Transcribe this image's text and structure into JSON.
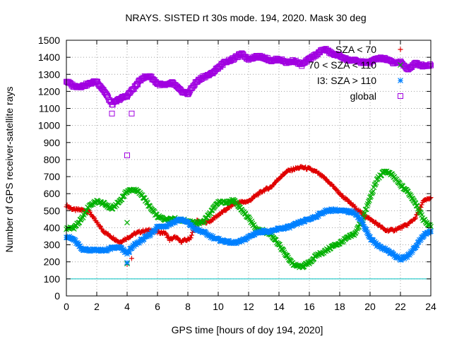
{
  "chart_data": {
    "type": "scatter",
    "title": "NRAYS. SISTED rt 30s mode. 194, 2020. Mask 30 deg",
    "xlabel": "GPS time [hours of doy 194, 2020]",
    "ylabel": "Number of GPS receiver-satellite rays",
    "xlim": [
      0,
      24
    ],
    "ylim": [
      0,
      1500
    ],
    "xticks": [
      "0",
      "2",
      "4",
      "6",
      "8",
      "10",
      "12",
      "14",
      "16",
      "18",
      "20",
      "22",
      "24"
    ],
    "yticks": [
      "0",
      "100",
      "200",
      "300",
      "400",
      "500",
      "600",
      "700",
      "800",
      "900",
      "1000",
      "1100",
      "1200",
      "1300",
      "1400",
      "1500"
    ],
    "grid": true,
    "reference_line": {
      "y": 100,
      "color": "#00c0c0"
    },
    "legend_position": "top-right",
    "series": [
      {
        "name": "SZA < 70",
        "marker": "+",
        "color": "#e00000",
        "points": [
          [
            0,
            530
          ],
          [
            0.5,
            505
          ],
          [
            1,
            505
          ],
          [
            1.5,
            495
          ],
          [
            2,
            430
          ],
          [
            2.5,
            375
          ],
          [
            3,
            345
          ],
          [
            3.5,
            315
          ],
          [
            4,
            340
          ],
          [
            4.5,
            365
          ],
          [
            5,
            380
          ],
          [
            5.5,
            385
          ],
          [
            6,
            375
          ],
          [
            6.5,
            370
          ],
          [
            6.8,
            330
          ],
          [
            7.2,
            345
          ],
          [
            7.5,
            320
          ],
          [
            8,
            330
          ],
          [
            8.2,
            345
          ],
          [
            8.6,
            440
          ],
          [
            9,
            430
          ],
          [
            9.5,
            440
          ],
          [
            10,
            475
          ],
          [
            10.5,
            505
          ],
          [
            11,
            540
          ],
          [
            11.5,
            550
          ],
          [
            12,
            555
          ],
          [
            12.5,
            590
          ],
          [
            13,
            620
          ],
          [
            13.5,
            640
          ],
          [
            14,
            690
          ],
          [
            14.5,
            730
          ],
          [
            15,
            745
          ],
          [
            15.5,
            755
          ],
          [
            16,
            745
          ],
          [
            16.5,
            725
          ],
          [
            17,
            690
          ],
          [
            17.5,
            650
          ],
          [
            18,
            600
          ],
          [
            18.5,
            560
          ],
          [
            19,
            520
          ],
          [
            19.5,
            480
          ],
          [
            20,
            450
          ],
          [
            20.5,
            420
          ],
          [
            21,
            385
          ],
          [
            21.5,
            385
          ],
          [
            22,
            400
          ],
          [
            22.5,
            420
          ],
          [
            23,
            460
          ],
          [
            23.5,
            555
          ],
          [
            24,
            575
          ]
        ],
        "outliers": [
          [
            4,
            185
          ],
          [
            4.3,
            220
          ]
        ]
      },
      {
        "name": "70 < SZA < 110",
        "marker": "x",
        "color": "#00b000",
        "points": [
          [
            0,
            395
          ],
          [
            0.5,
            400
          ],
          [
            1,
            450
          ],
          [
            1.5,
            530
          ],
          [
            2,
            555
          ],
          [
            2.5,
            540
          ],
          [
            3,
            510
          ],
          [
            3.5,
            555
          ],
          [
            4,
            615
          ],
          [
            4.5,
            625
          ],
          [
            5,
            590
          ],
          [
            5.5,
            520
          ],
          [
            6,
            465
          ],
          [
            6.5,
            450
          ],
          [
            7,
            455
          ],
          [
            7.5,
            445
          ],
          [
            8,
            440
          ],
          [
            8.5,
            425
          ],
          [
            9,
            435
          ],
          [
            9.5,
            490
          ],
          [
            10,
            550
          ],
          [
            10.5,
            550
          ],
          [
            11,
            560
          ],
          [
            11.5,
            510
          ],
          [
            12,
            455
          ],
          [
            12.5,
            395
          ],
          [
            13,
            380
          ],
          [
            13.5,
            360
          ],
          [
            14,
            300
          ],
          [
            14.5,
            235
          ],
          [
            15,
            180
          ],
          [
            15.5,
            170
          ],
          [
            16,
            195
          ],
          [
            16.5,
            240
          ],
          [
            17,
            260
          ],
          [
            17.5,
            290
          ],
          [
            18,
            310
          ],
          [
            18.5,
            340
          ],
          [
            19,
            365
          ],
          [
            19.5,
            450
          ],
          [
            20,
            575
          ],
          [
            20.5,
            690
          ],
          [
            21,
            735
          ],
          [
            21.5,
            705
          ],
          [
            22,
            650
          ],
          [
            22.5,
            610
          ],
          [
            23,
            545
          ],
          [
            23.5,
            450
          ],
          [
            24,
            405
          ]
        ],
        "outliers": [
          [
            4,
            190
          ],
          [
            4,
            430
          ]
        ]
      },
      {
        "name": "I3: SZA > 110",
        "marker": "*",
        "color": "#0080ff",
        "points": [
          [
            0,
            350
          ],
          [
            0.5,
            330
          ],
          [
            1,
            275
          ],
          [
            1.5,
            270
          ],
          [
            2,
            270
          ],
          [
            2.5,
            265
          ],
          [
            3,
            280
          ],
          [
            3.5,
            285
          ],
          [
            4,
            250
          ],
          [
            4.5,
            300
          ],
          [
            5,
            330
          ],
          [
            5.5,
            360
          ],
          [
            6,
            405
          ],
          [
            6.5,
            410
          ],
          [
            7,
            430
          ],
          [
            7.5,
            450
          ],
          [
            8,
            430
          ],
          [
            8.5,
            390
          ],
          [
            9,
            375
          ],
          [
            9.5,
            350
          ],
          [
            10,
            330
          ],
          [
            10.5,
            320
          ],
          [
            11,
            310
          ],
          [
            11.5,
            320
          ],
          [
            12,
            345
          ],
          [
            12.5,
            370
          ],
          [
            13,
            380
          ],
          [
            13.5,
            375
          ],
          [
            14,
            395
          ],
          [
            14.5,
            400
          ],
          [
            15,
            415
          ],
          [
            15.5,
            435
          ],
          [
            16,
            450
          ],
          [
            16.5,
            470
          ],
          [
            17,
            495
          ],
          [
            17.5,
            505
          ],
          [
            18,
            500
          ],
          [
            18.5,
            495
          ],
          [
            19,
            490
          ],
          [
            19.5,
            430
          ],
          [
            20,
            340
          ],
          [
            20.5,
            295
          ],
          [
            21,
            275
          ],
          [
            21.5,
            245
          ],
          [
            22,
            215
          ],
          [
            22.5,
            235
          ],
          [
            23,
            290
          ],
          [
            23.5,
            355
          ],
          [
            24,
            380
          ]
        ],
        "outliers": [
          [
            4,
            195
          ]
        ]
      },
      {
        "name": "global",
        "marker": "square",
        "color": "#a000e0",
        "points": [
          [
            0,
            1260
          ],
          [
            0.5,
            1230
          ],
          [
            1,
            1230
          ],
          [
            1.5,
            1245
          ],
          [
            2,
            1260
          ],
          [
            2.5,
            1200
          ],
          [
            3,
            1125
          ],
          [
            3.5,
            1155
          ],
          [
            4,
            1175
          ],
          [
            4.5,
            1225
          ],
          [
            5,
            1280
          ],
          [
            5.5,
            1290
          ],
          [
            6,
            1245
          ],
          [
            6.5,
            1235
          ],
          [
            7,
            1250
          ],
          [
            7.5,
            1205
          ],
          [
            8,
            1185
          ],
          [
            8.5,
            1250
          ],
          [
            9,
            1285
          ],
          [
            9.5,
            1300
          ],
          [
            10,
            1340
          ],
          [
            10.5,
            1375
          ],
          [
            11,
            1390
          ],
          [
            11.5,
            1420
          ],
          [
            12,
            1390
          ],
          [
            12.5,
            1405
          ],
          [
            13,
            1400
          ],
          [
            13.5,
            1380
          ],
          [
            14,
            1390
          ],
          [
            14.5,
            1370
          ],
          [
            15,
            1380
          ],
          [
            15.5,
            1355
          ],
          [
            16,
            1390
          ],
          [
            16.5,
            1420
          ],
          [
            17,
            1450
          ],
          [
            17.5,
            1420
          ],
          [
            18,
            1410
          ],
          [
            18.5,
            1385
          ],
          [
            19,
            1380
          ],
          [
            19.5,
            1370
          ],
          [
            20,
            1370
          ],
          [
            20.5,
            1395
          ],
          [
            21,
            1390
          ],
          [
            21.5,
            1370
          ],
          [
            22,
            1370
          ],
          [
            22.5,
            1330
          ],
          [
            23,
            1365
          ],
          [
            23.5,
            1350
          ],
          [
            24,
            1355
          ]
        ],
        "outliers": [
          [
            3,
            1070
          ],
          [
            4,
            825
          ],
          [
            4.3,
            1070
          ]
        ]
      }
    ]
  }
}
